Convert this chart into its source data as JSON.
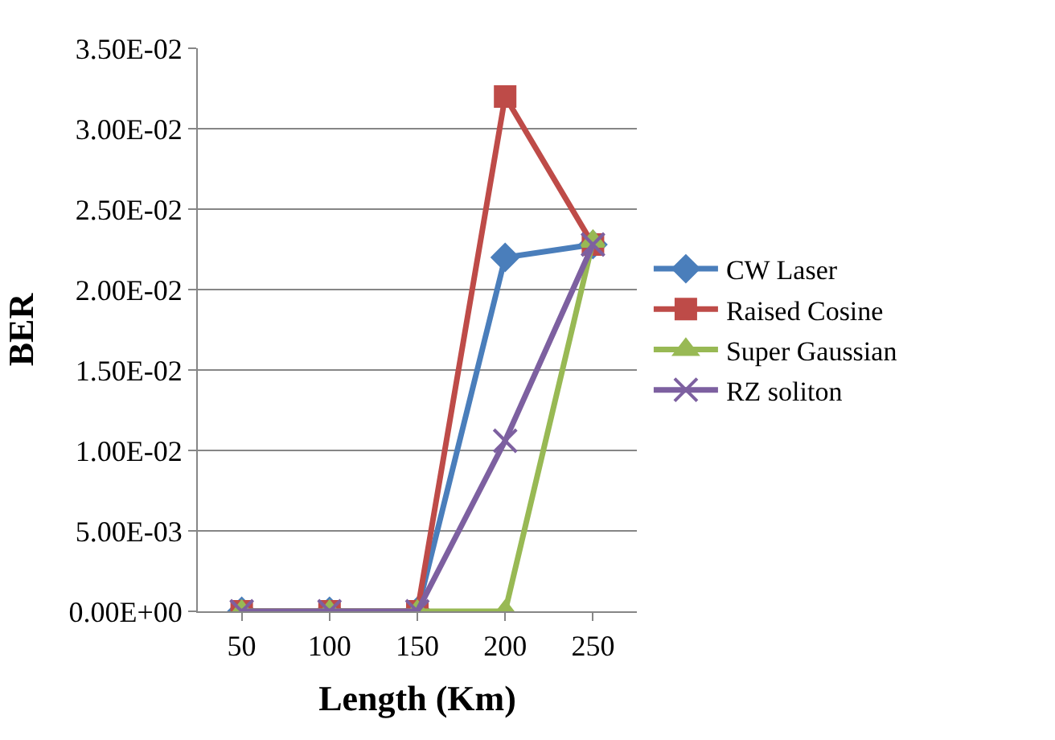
{
  "chart_data": {
    "type": "line",
    "xlabel": "Length (Km)",
    "ylabel": "BER",
    "categories": [
      "50",
      "100",
      "150",
      "200",
      "250"
    ],
    "series": [
      {
        "name": "CW Laser",
        "color": "#4a7ebb",
        "marker": "diamond",
        "values": [
          0,
          0,
          0,
          0.022,
          0.0228
        ]
      },
      {
        "name": "Raised Cosine",
        "color": "#be4b48",
        "marker": "square",
        "values": [
          0,
          0,
          0,
          0.032,
          0.0228
        ]
      },
      {
        "name": "Super Gaussian",
        "color": "#98b954",
        "marker": "triangle",
        "values": [
          0,
          0,
          0,
          0,
          0.023
        ]
      },
      {
        "name": "RZ soliton",
        "color": "#7d60a0",
        "marker": "cross",
        "values": [
          0,
          0,
          0,
          0.0106,
          0.0228
        ]
      }
    ],
    "ylim": [
      0,
      0.035
    ],
    "yticks": [
      {
        "value": 0,
        "label": "0.00E+00"
      },
      {
        "value": 0.005,
        "label": "5.00E-03"
      },
      {
        "value": 0.01,
        "label": "1.00E-02"
      },
      {
        "value": 0.015,
        "label": "1.50E-02"
      },
      {
        "value": 0.02,
        "label": "2.00E-02"
      },
      {
        "value": 0.025,
        "label": "2.50E-02"
      },
      {
        "value": 0.03,
        "label": "3.00E-02"
      },
      {
        "value": 0.035,
        "label": "3.50E-02"
      }
    ],
    "grid": "y",
    "legend": "right"
  }
}
